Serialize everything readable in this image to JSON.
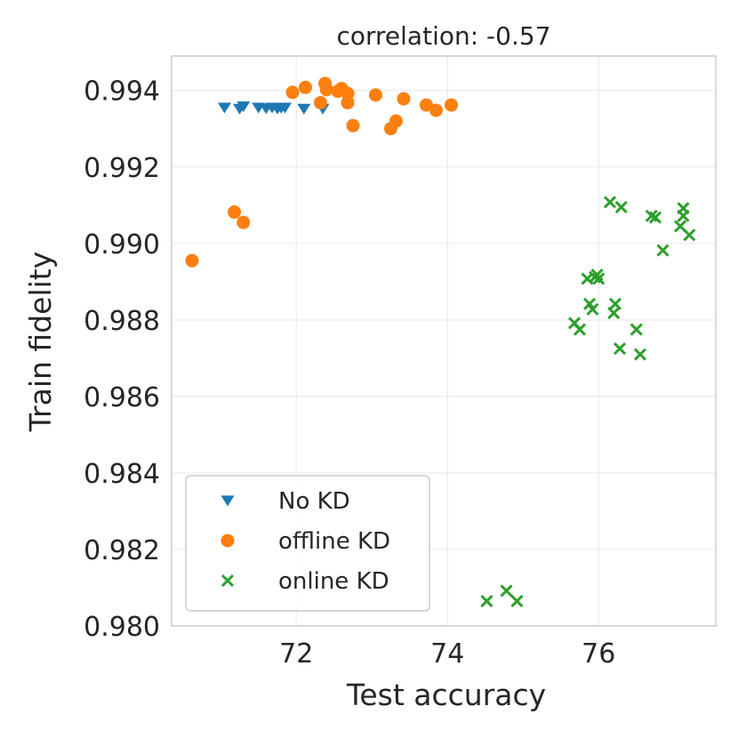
{
  "chart_data": {
    "type": "scatter",
    "title": "correlation: -0.57",
    "xlabel": "Test accuracy",
    "ylabel": "Train fidelity",
    "xlim": [
      70.35,
      77.55
    ],
    "ylim": [
      0.98,
      0.9949
    ],
    "xticks": [
      72,
      74,
      76
    ],
    "xtick_labels": [
      "72",
      "74",
      "76"
    ],
    "yticks": [
      0.98,
      0.982,
      0.984,
      0.986,
      0.988,
      0.99,
      0.992,
      0.994
    ],
    "ytick_labels": [
      "0.980",
      "0.982",
      "0.984",
      "0.986",
      "0.988",
      "0.990",
      "0.992",
      "0.994"
    ],
    "grid": true,
    "legend_position": "lower-left",
    "series": [
      {
        "name": "No KD",
        "marker": "triangle-down",
        "color": "#1f77b4",
        "points": [
          [
            71.05,
            0.99355
          ],
          [
            71.25,
            0.99352
          ],
          [
            71.3,
            0.99358
          ],
          [
            71.5,
            0.99355
          ],
          [
            71.6,
            0.99353
          ],
          [
            71.68,
            0.99355
          ],
          [
            71.75,
            0.99352
          ],
          [
            71.8,
            0.99354
          ],
          [
            71.85,
            0.99355
          ],
          [
            72.1,
            0.99352
          ],
          [
            72.35,
            0.99352
          ]
        ]
      },
      {
        "name": "offline KD",
        "color": "#ff7f0e",
        "marker": "circle",
        "points": [
          [
            71.95,
            0.99395
          ],
          [
            72.12,
            0.99408
          ],
          [
            72.32,
            0.99368
          ],
          [
            72.38,
            0.99418
          ],
          [
            72.4,
            0.99402
          ],
          [
            72.55,
            0.99398
          ],
          [
            72.6,
            0.99405
          ],
          [
            72.68,
            0.99392
          ],
          [
            72.68,
            0.99368
          ],
          [
            72.75,
            0.99308
          ],
          [
            73.05,
            0.99388
          ],
          [
            73.25,
            0.993
          ],
          [
            73.32,
            0.9932
          ],
          [
            73.42,
            0.99378
          ],
          [
            73.72,
            0.99362
          ],
          [
            73.85,
            0.99348
          ],
          [
            74.05,
            0.99362
          ],
          [
            70.62,
            0.98955
          ],
          [
            71.18,
            0.99082
          ],
          [
            71.3,
            0.99055
          ]
        ]
      },
      {
        "name": "online KD",
        "color": "#2ca02c",
        "marker": "x",
        "points": [
          [
            76.15,
            0.99108
          ],
          [
            76.3,
            0.99095
          ],
          [
            76.7,
            0.99072
          ],
          [
            76.75,
            0.99068
          ],
          [
            77.08,
            0.99045
          ],
          [
            77.12,
            0.99092
          ],
          [
            77.12,
            0.99072
          ],
          [
            77.2,
            0.99022
          ],
          [
            76.85,
            0.98982
          ],
          [
            75.85,
            0.98908
          ],
          [
            75.95,
            0.98912
          ],
          [
            75.98,
            0.98918
          ],
          [
            76.0,
            0.98908
          ],
          [
            75.88,
            0.98842
          ],
          [
            75.92,
            0.98828
          ],
          [
            76.22,
            0.98842
          ],
          [
            76.2,
            0.98818
          ],
          [
            75.68,
            0.98792
          ],
          [
            75.75,
            0.98775
          ],
          [
            76.5,
            0.98775
          ],
          [
            76.28,
            0.98725
          ],
          [
            76.55,
            0.9871
          ],
          [
            74.52,
            0.98065
          ],
          [
            74.78,
            0.98092
          ],
          [
            74.92,
            0.98065
          ]
        ]
      }
    ]
  }
}
